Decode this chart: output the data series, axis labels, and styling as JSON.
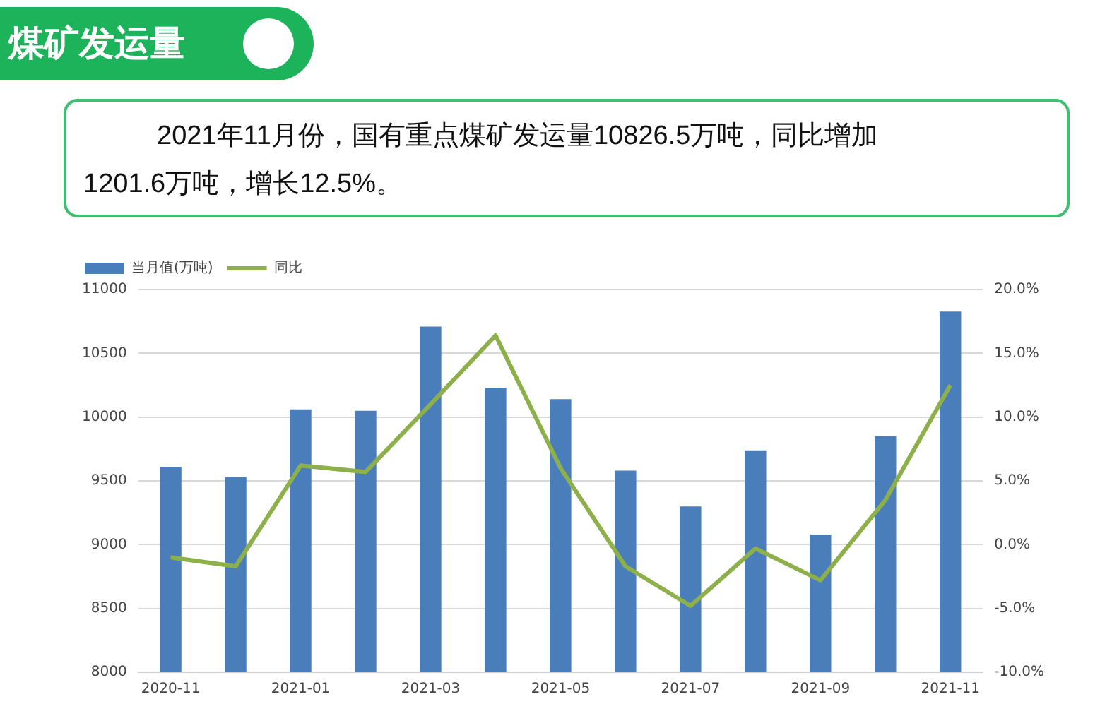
{
  "chart_data": {
    "type": "bar",
    "title": "煤矿发运量",
    "subtitle": "2021年11月份，国有重点煤矿发运量10826.5万吨，同比增加1201.6万吨，增长12.5%。",
    "categories": [
      "2020-11",
      null,
      "2021-01",
      null,
      "2021-03",
      null,
      "2021-05",
      null,
      "2021-07",
      null,
      "2021-09",
      null,
      "2021-11"
    ],
    "series": [
      {
        "name": "当月值(万吨)",
        "color": "#4a7ebb",
        "values": [
          9610,
          9530,
          10060,
          10050,
          10710,
          10230,
          10140,
          9580,
          9300,
          9740,
          9080,
          9850,
          10826.5
        ]
      },
      {
        "name": "同比",
        "type": "line",
        "axis": "y2",
        "color": "#8db04a",
        "marker": "none",
        "line_style": "solid",
        "values": [
          -1.0,
          -1.7,
          6.2,
          5.7,
          11.0,
          16.4,
          6.0,
          -1.7,
          -4.8,
          -0.3,
          -2.8,
          3.5,
          12.5
        ]
      }
    ],
    "ylim": [
      8000,
      11000
    ],
    "yticks": [
      8000,
      8500,
      9000,
      9500,
      10000,
      10500,
      11000
    ],
    "y2lim": [
      -10,
      20
    ],
    "y2ticks": [
      {
        "value": -10,
        "label": "-10.0%"
      },
      {
        "value": -5,
        "label": "-5.0%"
      },
      {
        "value": 0,
        "label": "0.0%"
      },
      {
        "value": 5,
        "label": "5.0%"
      },
      {
        "value": 10,
        "label": "10.0%"
      },
      {
        "value": 15,
        "label": "15.0%"
      },
      {
        "value": 20,
        "label": "20.0%"
      }
    ],
    "grid": "y",
    "legend": "top left"
  }
}
